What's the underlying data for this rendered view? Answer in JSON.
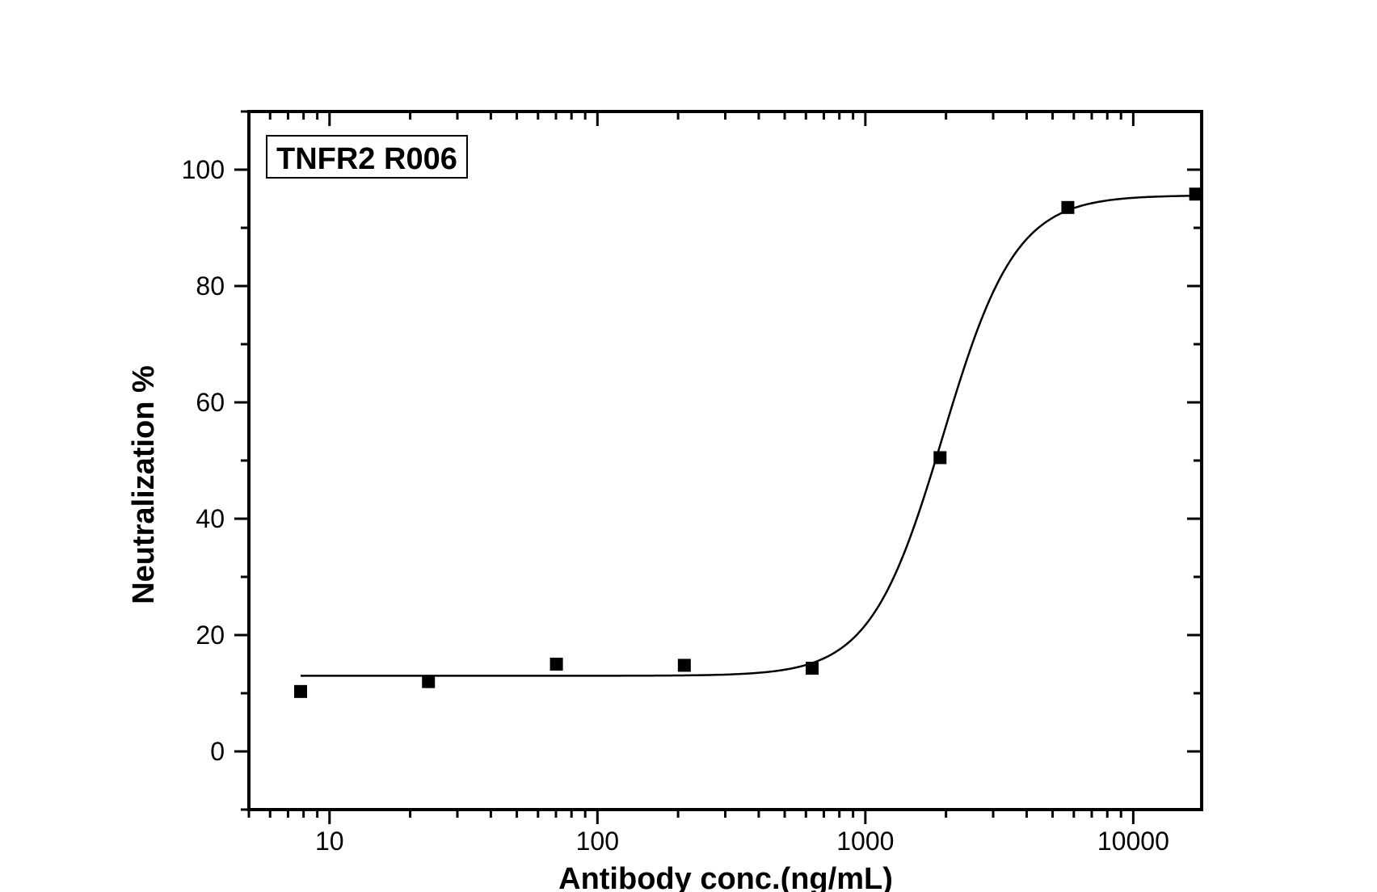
{
  "chart_data": {
    "type": "scatter",
    "title": "",
    "annotation": "TNFR2 R006",
    "xlabel": "Antibody conc.(ng/mL)",
    "ylabel": "Neutralization %",
    "x_scale": "log",
    "xlim": [
      5,
      18000
    ],
    "ylim": [
      -10,
      110
    ],
    "x_ticks": [
      10,
      100,
      1000,
      10000
    ],
    "x_tick_labels": [
      "10",
      "100",
      "1000",
      "10000"
    ],
    "y_ticks": [
      0,
      20,
      40,
      60,
      80,
      100
    ],
    "y_tick_labels": [
      "0",
      "20",
      "40",
      "60",
      "80",
      "100"
    ],
    "grid": false,
    "series": [
      {
        "marker": "square",
        "color": "#000000",
        "x": [
          7.8,
          23.4,
          70.3,
          211,
          633,
          1900,
          5700,
          17100
        ],
        "y": [
          10.3,
          12.0,
          15.0,
          14.8,
          14.3,
          50.5,
          93.5,
          95.8
        ]
      }
    ],
    "fit": {
      "type": "sigmoidal",
      "bottom": 13.0,
      "top": 95.6,
      "x50": 1950,
      "hill": 3.2,
      "x_range": [
        7.8,
        17100
      ],
      "color": "#000000"
    }
  }
}
